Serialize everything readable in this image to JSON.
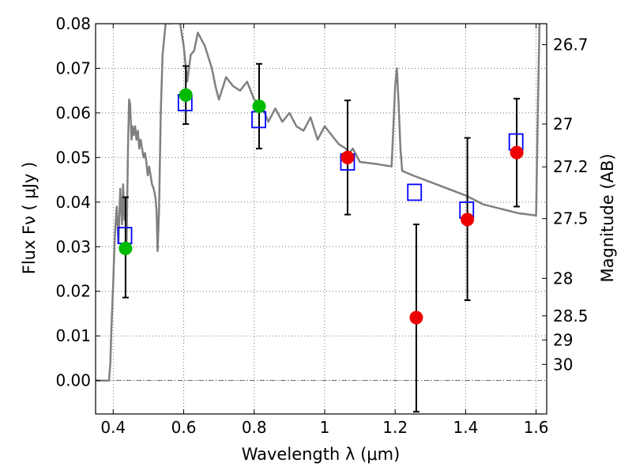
{
  "chart_data": {
    "type": "scatter",
    "title": "",
    "xlabel": "Wavelength  λ (μm)",
    "ylabel": "Flux  Fν  ( μJy )",
    "y2label": "Magnitude (AB)",
    "xlim": [
      0.35,
      1.63
    ],
    "ylim": [
      -0.0075,
      0.08
    ],
    "grid": true,
    "x_ticks": [
      0.4,
      0.6,
      0.8,
      1.0,
      1.2,
      1.4,
      1.6
    ],
    "x_tick_labels": [
      "0.4",
      "0.6",
      "0.8",
      "1",
      "1.2",
      "1.4",
      "1.6"
    ],
    "y_ticks": [
      0.0,
      0.01,
      0.02,
      0.03,
      0.04,
      0.05,
      0.06,
      0.07,
      0.08
    ],
    "y_tick_labels": [
      "0.00",
      "0.01",
      "0.02",
      "0.03",
      "0.04",
      "0.05",
      "0.06",
      "0.07",
      "0.08"
    ],
    "y2_ticks": [
      {
        "label": "26.7",
        "flux": 0.0753
      },
      {
        "label": "27",
        "flux": 0.0575
      },
      {
        "label": "27.2",
        "flux": 0.0479
      },
      {
        "label": "27.5",
        "flux": 0.0363
      },
      {
        "label": "28",
        "flux": 0.0229
      },
      {
        "label": "28.5",
        "flux": 0.0145
      },
      {
        "label": "29",
        "flux": 0.0091
      },
      {
        "label": "30",
        "flux": 0.0036
      }
    ],
    "colors": {
      "model": "#808080",
      "model_photometry": "#0000ff",
      "green_points": "#00bb00",
      "red_points": "#ee0000",
      "error_bars": "#000000"
    },
    "series": [
      {
        "kind": "line",
        "x": [
          0.35,
          0.388,
          0.392,
          0.395,
          0.4,
          0.405,
          0.41,
          0.415,
          0.42,
          0.425,
          0.428,
          0.432,
          0.435,
          0.438,
          0.442,
          0.445,
          0.448,
          0.452,
          0.455,
          0.458,
          0.462,
          0.466,
          0.47,
          0.474,
          0.478,
          0.482,
          0.486,
          0.49,
          0.494,
          0.498,
          0.502,
          0.506,
          0.51,
          0.515,
          0.52,
          0.523,
          0.526,
          0.53,
          0.535,
          0.54,
          0.55,
          0.56,
          0.57,
          0.58,
          0.59,
          0.6,
          0.605,
          0.61,
          0.62,
          0.63,
          0.64,
          0.66,
          0.68,
          0.69,
          0.7,
          0.72,
          0.74,
          0.76,
          0.78,
          0.8,
          0.82,
          0.84,
          0.86,
          0.88,
          0.9,
          0.92,
          0.94,
          0.96,
          0.98,
          1.0,
          1.02,
          1.04,
          1.06,
          1.07,
          1.08,
          1.1,
          1.15,
          1.19,
          1.2,
          1.205,
          1.21,
          1.215,
          1.22,
          1.25,
          1.3,
          1.35,
          1.4,
          1.45,
          1.5,
          1.55,
          1.6,
          1.605,
          1.61,
          1.615
        ],
        "y": [
          0.0,
          0.0,
          0.004,
          0.012,
          0.022,
          0.033,
          0.039,
          0.031,
          0.043,
          0.035,
          0.044,
          0.036,
          0.041,
          0.031,
          0.052,
          0.063,
          0.062,
          0.054,
          0.057,
          0.055,
          0.057,
          0.054,
          0.056,
          0.052,
          0.054,
          0.052,
          0.05,
          0.051,
          0.049,
          0.046,
          0.048,
          0.046,
          0.044,
          0.043,
          0.041,
          0.038,
          0.029,
          0.038,
          0.06,
          0.073,
          0.081,
          0.08,
          0.081,
          0.082,
          0.08,
          0.075,
          0.071,
          0.067,
          0.073,
          0.074,
          0.078,
          0.075,
          0.07,
          0.066,
          0.063,
          0.068,
          0.066,
          0.065,
          0.067,
          0.063,
          0.062,
          0.058,
          0.061,
          0.058,
          0.06,
          0.057,
          0.056,
          0.059,
          0.054,
          0.057,
          0.055,
          0.053,
          0.052,
          0.051,
          0.052,
          0.049,
          0.0485,
          0.048,
          0.066,
          0.07,
          0.062,
          0.052,
          0.047,
          0.046,
          0.0445,
          0.043,
          0.0415,
          0.0395,
          0.0385,
          0.0375,
          0.037,
          0.06,
          0.082,
          0.082
        ]
      },
      {
        "kind": "squares",
        "name": "",
        "x": [
          0.433,
          0.604,
          0.813,
          1.065,
          1.255,
          1.403,
          1.543
        ],
        "y": [
          0.0325,
          0.0623,
          0.0585,
          0.049,
          0.0422,
          0.0382,
          0.0535
        ]
      },
      {
        "kind": "points",
        "name": "",
        "color_key": "green_points",
        "x": [
          0.435,
          0.606,
          0.814
        ],
        "y": [
          0.0296,
          0.064,
          0.0615
        ],
        "yerr_low": [
          0.011,
          0.0065,
          0.0095
        ],
        "yerr_high": [
          0.0115,
          0.0065,
          0.0095
        ]
      },
      {
        "kind": "points",
        "name": "",
        "color_key": "red_points",
        "x": [
          1.065,
          1.26,
          1.405,
          1.545
        ],
        "y": [
          0.05,
          0.0141,
          0.0361,
          0.0511
        ],
        "yerr_low": [
          0.0128,
          0.0211,
          0.0181,
          0.0121
        ],
        "yerr_high": [
          0.0128,
          0.0209,
          0.0183,
          0.0121
        ]
      }
    ]
  }
}
